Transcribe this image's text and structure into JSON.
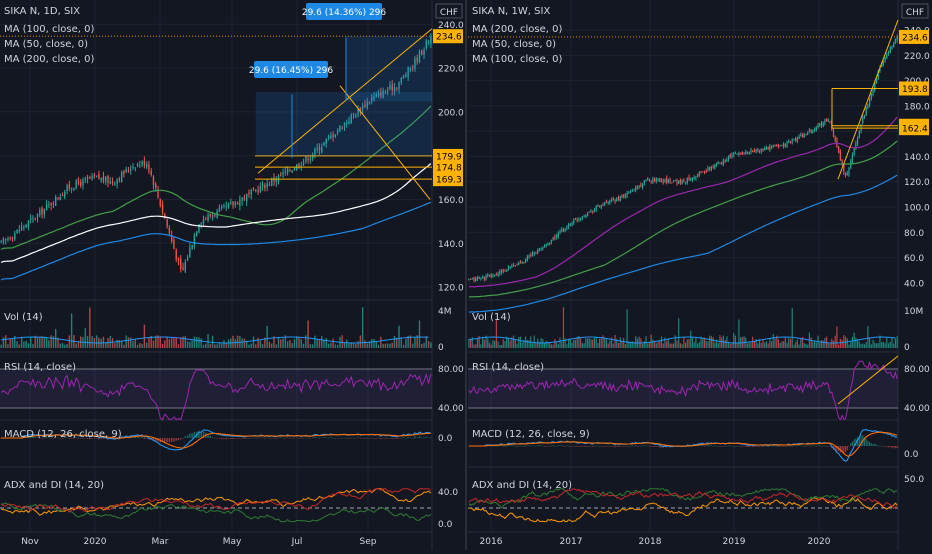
{
  "colors": {
    "bg": "#131722",
    "grid": "#1e2230",
    "axis_text": "#d1d4dc",
    "divider": "#2a2e39",
    "up": "#26a69a",
    "down": "#ef5350",
    "ma100_daily": "#ffffff",
    "ma50": "#43a047",
    "ma200": "#1e88e5",
    "ma100_weekly": "#9c27b0",
    "vol_ma": "#2196f3",
    "rsi": "#9c27b0",
    "macd": "#2196f3",
    "signal": "#ff6d00",
    "adx": "#ff9800",
    "di_plus": "#2e7d32",
    "di_minus": "#c62828",
    "price_tag": "#ffb300",
    "measure": "#1e88e5"
  },
  "left": {
    "legend": {
      "symbol": "SIKA N, 1D, SIX",
      "ma1": "MA (100, close, 0)",
      "ma2": "MA (50, close, 0)",
      "ma3": "MA (200, close, 0)"
    },
    "currency": "CHF",
    "last_price": "234.6",
    "levels": [
      "179.9",
      "174.8",
      "169.3"
    ],
    "measure1": "29.6 (16.45%) 296",
    "measure2": "29.6 (14.36%) 296",
    "price_ticks": [
      "240.0",
      "220.0",
      "200.0",
      "180.0",
      "160.0",
      "140.0",
      "120.0"
    ],
    "vol_title": "Vol (14)",
    "vol_ticks": [
      "4M",
      "0"
    ],
    "rsi_title": "RSI (14, close)",
    "rsi_ticks": [
      "80.00",
      "40.00"
    ],
    "macd_title": "MACD (12, 26, close, 9)",
    "macd_ticks": [
      "0.0"
    ],
    "adx_title": "ADX and DI (14, 20)",
    "adx_ticks": [
      "40.0",
      "0.0"
    ],
    "time_ticks": [
      "Nov",
      "2020",
      "Mar",
      "May",
      "Jul",
      "Sep"
    ]
  },
  "right": {
    "legend": {
      "symbol": "SIKA N, 1W, SIX",
      "ma1": "MA (200, close, 0)",
      "ma2": "MA (50, close, 0)",
      "ma3": "MA (100, close, 0)"
    },
    "currency": "CHF",
    "last_price": "234.6",
    "levels": [
      "193.8",
      "164.3",
      "162.4"
    ],
    "price_ticks": [
      "240.0",
      "220.0",
      "200.0",
      "180.0",
      "160.0",
      "140.0",
      "120.0",
      "100.0",
      "80.0",
      "60.0",
      "40.0"
    ],
    "vol_title": "Vol (14)",
    "vol_ticks": [
      "10M",
      "0"
    ],
    "rsi_title": "RSI (14, close)",
    "rsi_ticks": [
      "80.00",
      "40.00"
    ],
    "macd_title": "MACD (12, 26, close, 9)",
    "macd_ticks": [
      "0.0"
    ],
    "adx_title": "ADX and DI (14, 20)",
    "adx_ticks": [
      "50.0"
    ],
    "time_ticks": [
      "2016",
      "2017",
      "2018",
      "2019",
      "2020"
    ]
  },
  "chart_data": [
    {
      "type": "candlestick",
      "title": "SIKA N, 1D, SIX",
      "ylim": [
        115,
        242
      ],
      "last": 234.6,
      "key_points": [
        [
          0,
          140
        ],
        [
          8,
          152
        ],
        [
          16,
          166
        ],
        [
          22,
          170
        ],
        [
          26,
          168
        ],
        [
          31,
          176
        ],
        [
          34,
          177
        ],
        [
          38,
          152
        ],
        [
          42,
          126
        ],
        [
          46,
          150
        ],
        [
          54,
          158
        ],
        [
          60,
          165
        ],
        [
          66,
          172
        ],
        [
          72,
          180
        ],
        [
          80,
          195
        ],
        [
          86,
          206
        ],
        [
          92,
          212
        ],
        [
          96,
          222
        ],
        [
          100,
          234.6
        ]
      ],
      "levels": [
        179.9,
        174.8,
        169.3
      ]
    },
    {
      "type": "candlestick",
      "title": "SIKA N, 1W, SIX",
      "ylim": [
        28,
        248
      ],
      "last": 234.6,
      "key_points": [
        [
          0,
          42
        ],
        [
          6,
          46
        ],
        [
          12,
          56
        ],
        [
          18,
          70
        ],
        [
          24,
          88
        ],
        [
          30,
          100
        ],
        [
          36,
          108
        ],
        [
          42,
          122
        ],
        [
          50,
          120
        ],
        [
          56,
          130
        ],
        [
          62,
          142
        ],
        [
          68,
          145
        ],
        [
          74,
          150
        ],
        [
          80,
          160
        ],
        [
          84,
          170
        ],
        [
          88,
          123
        ],
        [
          92,
          170
        ],
        [
          96,
          210
        ],
        [
          100,
          234.6
        ]
      ],
      "levels": [
        193.8,
        164.3,
        162.4
      ]
    }
  ]
}
